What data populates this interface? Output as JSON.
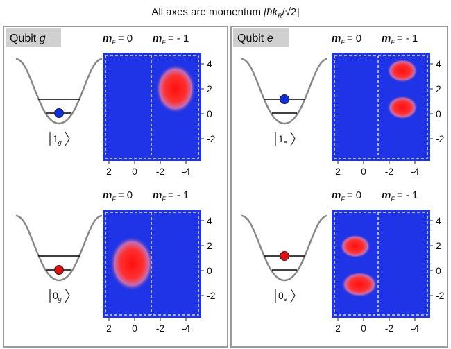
{
  "title": {
    "text": "All axes are momentum",
    "unit": "[ħk",
    "unit_sub": "R",
    "unit_tail": "/√2]"
  },
  "panels": [
    {
      "label": "Qubit",
      "qubit": "g",
      "rows": [
        {
          "state": "1",
          "state_sub": "g",
          "headers": [
            {
              "symbol": "m",
              "sub": "F",
              "text": "= 0"
            },
            {
              "symbol": "m",
              "sub": "F",
              "text": "= - 1"
            }
          ],
          "xticks": [
            2,
            0,
            -2,
            -4
          ],
          "yticks": [
            4,
            2,
            0,
            -2
          ]
        },
        {
          "state": "0",
          "state_sub": "g",
          "headers": [
            {
              "symbol": "m",
              "sub": "F",
              "text": "= 0"
            },
            {
              "symbol": "m",
              "sub": "F",
              "text": "= - 1"
            }
          ],
          "xticks": [
            2,
            0,
            -2,
            -4
          ],
          "yticks": [
            4,
            2,
            0,
            -2
          ]
        }
      ]
    },
    {
      "label": "Qubit",
      "qubit": "e",
      "rows": [
        {
          "state": "1",
          "state_sub": "e",
          "headers": [
            {
              "symbol": "m",
              "sub": "F",
              "text": "= 0"
            },
            {
              "symbol": "m",
              "sub": "F",
              "text": "= - 1"
            }
          ],
          "xticks": [
            2,
            0,
            -2,
            -4
          ],
          "yticks": [
            4,
            2,
            0,
            -2
          ]
        },
        {
          "state": "0",
          "state_sub": "e",
          "headers": [
            {
              "symbol": "m",
              "sub": "F",
              "text": "= 0"
            },
            {
              "symbol": "m",
              "sub": "F",
              "text": "= - 1"
            }
          ],
          "xticks": [
            2,
            0,
            -2,
            -4
          ],
          "yticks": [
            4,
            2,
            0,
            -2
          ]
        }
      ]
    }
  ]
}
